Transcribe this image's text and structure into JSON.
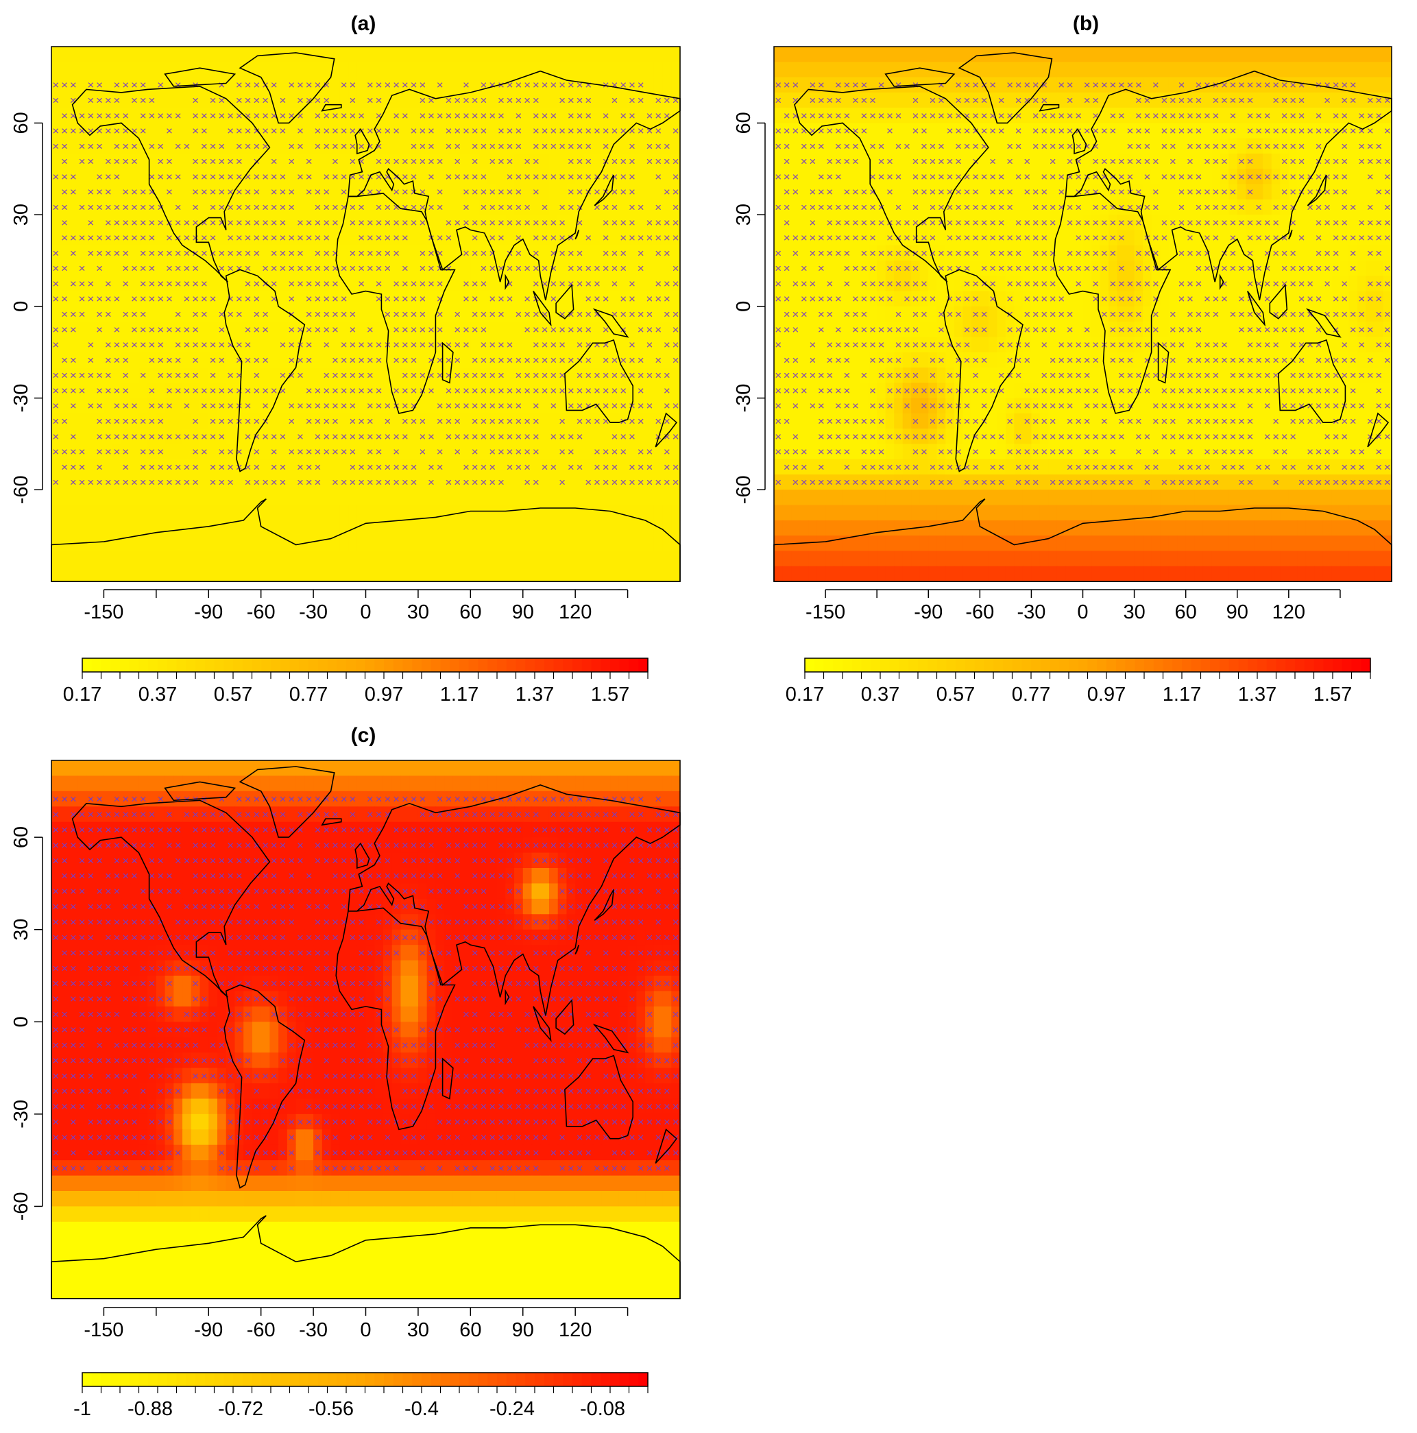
{
  "panels": [
    {
      "id": "a",
      "title": "(a)",
      "field": "uniform",
      "xticks": [
        "-150",
        "-90",
        "-60",
        "-30",
        "0",
        "30",
        "60",
        "90",
        "120"
      ],
      "yticks": [
        "60",
        "30",
        "0",
        "-30",
        "-60"
      ],
      "colorbar": {
        "ticks": [
          "0.17",
          "0.37",
          "0.57",
          "0.77",
          "0.97",
          "1.17",
          "1.37",
          "1.57"
        ],
        "range": [
          0.17,
          1.67
        ]
      }
    },
    {
      "id": "b",
      "title": "(b)",
      "field": "warm",
      "xticks": [
        "-150",
        "-90",
        "-60",
        "-30",
        "0",
        "30",
        "60",
        "90",
        "120"
      ],
      "yticks": [
        "60",
        "30",
        "0",
        "-30",
        "-60"
      ],
      "colorbar": {
        "ticks": [
          "0.17",
          "0.37",
          "0.57",
          "0.77",
          "0.97",
          "1.17",
          "1.37",
          "1.57"
        ],
        "range": [
          0.17,
          1.67
        ]
      }
    },
    {
      "id": "c",
      "title": "(c)",
      "field": "diff",
      "xticks": [
        "-150",
        "-90",
        "-60",
        "-30",
        "0",
        "30",
        "60",
        "90",
        "120"
      ],
      "yticks": [
        "60",
        "30",
        "0",
        "-30",
        "-60"
      ],
      "colorbar": {
        "ticks": [
          "-1",
          "-0.88",
          "-0.72",
          "-0.56",
          "-0.4",
          "-0.24",
          "-0.08"
        ],
        "range": [
          -1.0,
          0.0
        ]
      }
    }
  ],
  "colors": {
    "low": "#ffff00",
    "mid": "#ffa500",
    "high": "#ff0000",
    "hatch_marker": "#7b3fbf"
  },
  "marker_symbol": "×"
}
